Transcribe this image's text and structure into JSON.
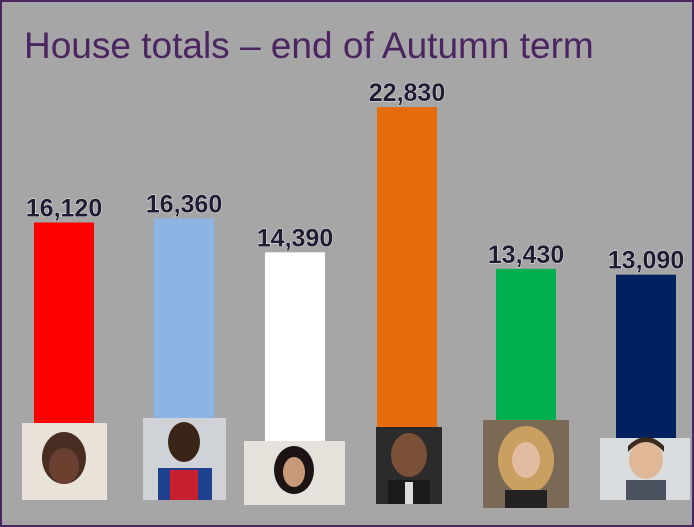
{
  "chart_data": {
    "type": "bar",
    "title": "House totals – end of Autumn term",
    "categories": [
      null,
      null,
      null,
      null,
      null,
      null
    ],
    "values": [
      16120,
      16360,
      14390,
      22830,
      13430,
      13090
    ],
    "value_labels": [
      "16,120",
      "16,360",
      "14,390",
      "22,830",
      "13,430",
      "13,090"
    ],
    "colors": [
      "#ff0000",
      "#8db4e2",
      "#ffffff",
      "#e46c0a",
      "#00b050",
      "#002060"
    ]
  }
}
